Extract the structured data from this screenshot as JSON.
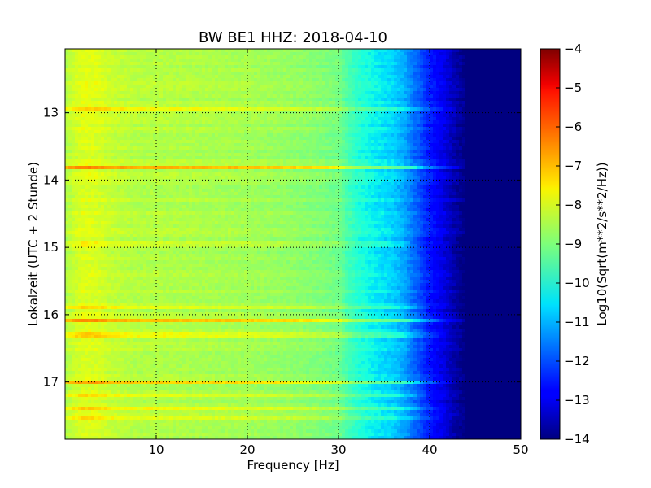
{
  "chart_data": {
    "type": "heatmap",
    "title": "BW BE1 HHZ: 2018-04-10",
    "xlabel": "Frequency [Hz]",
    "ylabel": "Lokalzeit (UTC + 2 Stunde)",
    "xlim": [
      0,
      50
    ],
    "ylim": [
      12.05,
      17.85
    ],
    "y_inverted": true,
    "x_ticks": [
      10,
      20,
      30,
      40,
      50
    ],
    "y_ticks": [
      13,
      14,
      15,
      16,
      17
    ],
    "grid": true,
    "grid_style": "dotted",
    "colormap": "jet",
    "colorbar": {
      "label": "Log10(Sqrt(m**2/s**2/Hz))",
      "min": -14,
      "max": -4,
      "ticks": [
        -4,
        -5,
        -6,
        -7,
        -8,
        -9,
        -10,
        -11,
        -12,
        -13,
        -14
      ]
    },
    "spectral_profile": {
      "frequency_hz": [
        0,
        1,
        2,
        3,
        4,
        5,
        8,
        10,
        15,
        20,
        25,
        28,
        30,
        31,
        32,
        34,
        36,
        37,
        38,
        39,
        40,
        41,
        42,
        43,
        44,
        45,
        50
      ],
      "log10_amplitude": [
        -8.4,
        -8.0,
        -7.8,
        -7.8,
        -7.9,
        -8.1,
        -8.3,
        -8.3,
        -8.4,
        -8.5,
        -8.7,
        -8.9,
        -9.1,
        -9.6,
        -10.0,
        -10.4,
        -10.7,
        -11.0,
        -11.5,
        -12.0,
        -12.5,
        -12.9,
        -13.3,
        -13.7,
        -14.0,
        -14.0,
        -14.0
      ]
    },
    "noise_bands": [
      {
        "time_h": 13.8,
        "boost": 1.4,
        "max_freq_hz": 45
      },
      {
        "time_h": 16.1,
        "boost": 1.5,
        "max_freq_hz": 46
      },
      {
        "time_h": 15.9,
        "boost": 0.6,
        "max_freq_hz": 40
      },
      {
        "time_h": 17.0,
        "boost": 1.3,
        "max_freq_hz": 44
      },
      {
        "time_h": 12.95,
        "boost": 0.6,
        "max_freq_hz": 44
      },
      {
        "time_h": 16.3,
        "boost": 0.6,
        "max_freq_hz": 42
      },
      {
        "time_h": 17.4,
        "boost": 0.7,
        "max_freq_hz": 43
      },
      {
        "time_h": 17.2,
        "boost": 0.5,
        "max_freq_hz": 40
      },
      {
        "time_h": 17.55,
        "boost": 0.5,
        "max_freq_hz": 42
      },
      {
        "time_h": 14.95,
        "boost": 0.4,
        "max_freq_hz": 38
      }
    ]
  }
}
